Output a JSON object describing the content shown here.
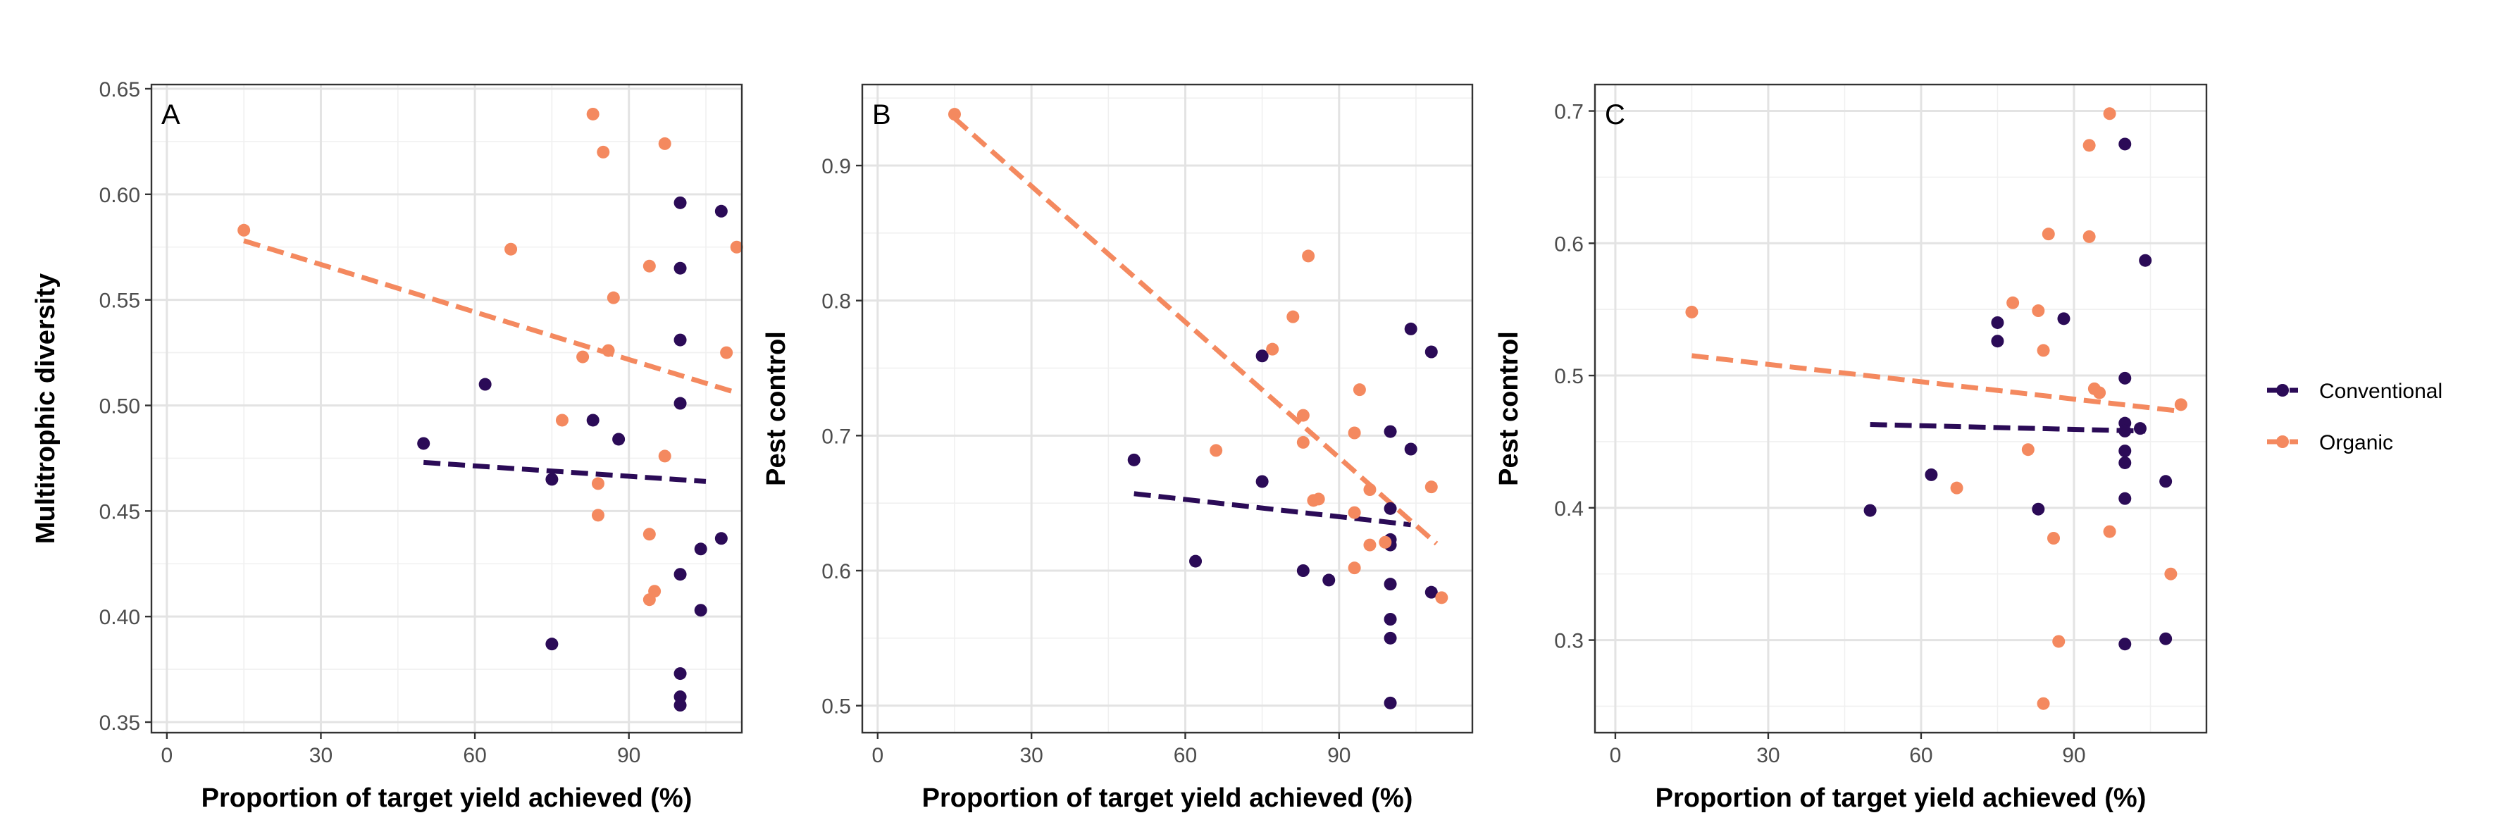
{
  "colors": {
    "Conventional": "#2b0b57",
    "Organic": "#f4895f"
  },
  "legend": {
    "items": [
      "Conventional",
      "Organic"
    ]
  },
  "chart_data": [
    {
      "type": "scatter",
      "tag": "A",
      "xlabel": "Proportion of target yield achieved (%)",
      "ylabel": "Multitrophic diversity",
      "xlim": [
        -3,
        112
      ],
      "ylim": [
        0.345,
        0.652
      ],
      "xticks": [
        0,
        30,
        60,
        90
      ],
      "yticks": [
        0.35,
        0.4,
        0.45,
        0.5,
        0.55,
        0.6,
        0.65
      ],
      "grid": true,
      "legend_position": "right",
      "series": [
        {
          "name": "Conventional",
          "points": [
            [
              50,
              0.482
            ],
            [
              62,
              0.51
            ],
            [
              75,
              0.465
            ],
            [
              75,
              0.387
            ],
            [
              83,
              0.493
            ],
            [
              88,
              0.484
            ],
            [
              100,
              0.596
            ],
            [
              100,
              0.565
            ],
            [
              100,
              0.531
            ],
            [
              100,
              0.501
            ],
            [
              100,
              0.42
            ],
            [
              100,
              0.373
            ],
            [
              100,
              0.362
            ],
            [
              100,
              0.358
            ],
            [
              104,
              0.432
            ],
            [
              104,
              0.403
            ],
            [
              108,
              0.592
            ],
            [
              108,
              0.437
            ]
          ],
          "trend": [
            [
              50,
              0.473
            ],
            [
              105,
              0.464
            ]
          ]
        },
        {
          "name": "Organic",
          "points": [
            [
              15,
              0.583
            ],
            [
              67,
              0.574
            ],
            [
              77,
              0.493
            ],
            [
              81,
              0.523
            ],
            [
              83,
              0.638
            ],
            [
              84,
              0.448
            ],
            [
              84,
              0.463
            ],
            [
              85,
              0.62
            ],
            [
              86,
              0.526
            ],
            [
              87,
              0.551
            ],
            [
              94,
              0.566
            ],
            [
              94,
              0.439
            ],
            [
              94,
              0.408
            ],
            [
              95,
              0.412
            ],
            [
              97,
              0.624
            ],
            [
              97,
              0.476
            ],
            [
              109,
              0.525
            ],
            [
              111,
              0.575
            ]
          ],
          "trend": [
            [
              15,
              0.578
            ],
            [
              111,
              0.506
            ]
          ]
        }
      ]
    },
    {
      "type": "scatter",
      "tag": "B",
      "xlabel": "Proportion of target yield achieved (%)",
      "ylabel": "Pest control",
      "xlim": [
        -3,
        116
      ],
      "ylim": [
        0.48,
        0.96
      ],
      "xticks": [
        0,
        30,
        60,
        90
      ],
      "yticks": [
        0.5,
        0.6,
        0.7,
        0.8,
        0.9
      ],
      "grid": true,
      "series": [
        {
          "name": "Conventional",
          "points": [
            [
              50,
              0.682
            ],
            [
              62,
              0.607
            ],
            [
              75,
              0.759
            ],
            [
              75,
              0.666
            ],
            [
              83,
              0.6
            ],
            [
              88,
              0.593
            ],
            [
              100,
              0.703
            ],
            [
              100,
              0.646
            ],
            [
              100,
              0.623
            ],
            [
              100,
              0.619
            ],
            [
              100,
              0.59
            ],
            [
              100,
              0.564
            ],
            [
              100,
              0.55
            ],
            [
              100,
              0.502
            ],
            [
              104,
              0.779
            ],
            [
              104,
              0.69
            ],
            [
              108,
              0.762
            ],
            [
              108,
              0.584
            ]
          ],
          "trend": [
            [
              50,
              0.657
            ],
            [
              104,
              0.634
            ]
          ]
        },
        {
          "name": "Organic",
          "points": [
            [
              15,
              0.938
            ],
            [
              66,
              0.689
            ],
            [
              77,
              0.764
            ],
            [
              81,
              0.788
            ],
            [
              83,
              0.715
            ],
            [
              83,
              0.695
            ],
            [
              84,
              0.833
            ],
            [
              85,
              0.652
            ],
            [
              86,
              0.653
            ],
            [
              93,
              0.702
            ],
            [
              93,
              0.643
            ],
            [
              93,
              0.602
            ],
            [
              94,
              0.734
            ],
            [
              96,
              0.619
            ],
            [
              96,
              0.66
            ],
            [
              99,
              0.621
            ],
            [
              108,
              0.662
            ],
            [
              110,
              0.58
            ]
          ],
          "trend": [
            [
              15,
              0.935
            ],
            [
              109,
              0.62
            ]
          ]
        }
      ]
    },
    {
      "type": "scatter",
      "tag": "C",
      "xlabel": "Proportion of target yield achieved (%)",
      "ylabel": "Pest control",
      "xlim": [
        -4,
        116
      ],
      "ylim": [
        0.23,
        0.72
      ],
      "xticks": [
        0,
        30,
        60,
        90
      ],
      "yticks": [
        0.3,
        0.4,
        0.5,
        0.6,
        0.7
      ],
      "grid": true,
      "series": [
        {
          "name": "Conventional",
          "points": [
            [
              50,
              0.398
            ],
            [
              62,
              0.425
            ],
            [
              75,
              0.54
            ],
            [
              75,
              0.526
            ],
            [
              83,
              0.399
            ],
            [
              88,
              0.543
            ],
            [
              100,
              0.675
            ],
            [
              100,
              0.498
            ],
            [
              100,
              0.464
            ],
            [
              100,
              0.458
            ],
            [
              100,
              0.443
            ],
            [
              100,
              0.434
            ],
            [
              100,
              0.407
            ],
            [
              100,
              0.297
            ],
            [
              104,
              0.587
            ],
            [
              103,
              0.46
            ],
            [
              108,
              0.42
            ],
            [
              108,
              0.301
            ]
          ],
          "trend": [
            [
              50,
              0.463
            ],
            [
              104,
              0.458
            ]
          ]
        },
        {
          "name": "Organic",
          "points": [
            [
              15,
              0.548
            ],
            [
              67,
              0.415
            ],
            [
              78,
              0.555
            ],
            [
              81,
              0.444
            ],
            [
              83,
              0.549
            ],
            [
              84,
              0.519
            ],
            [
              84,
              0.252
            ],
            [
              85,
              0.607
            ],
            [
              86,
              0.377
            ],
            [
              87,
              0.299
            ],
            [
              93,
              0.674
            ],
            [
              93,
              0.605
            ],
            [
              94,
              0.49
            ],
            [
              95,
              0.487
            ],
            [
              97,
              0.698
            ],
            [
              97,
              0.382
            ],
            [
              109,
              0.35
            ],
            [
              111,
              0.478
            ]
          ],
          "trend": [
            [
              15,
              0.515
            ],
            [
              111,
              0.473
            ]
          ]
        }
      ]
    }
  ]
}
